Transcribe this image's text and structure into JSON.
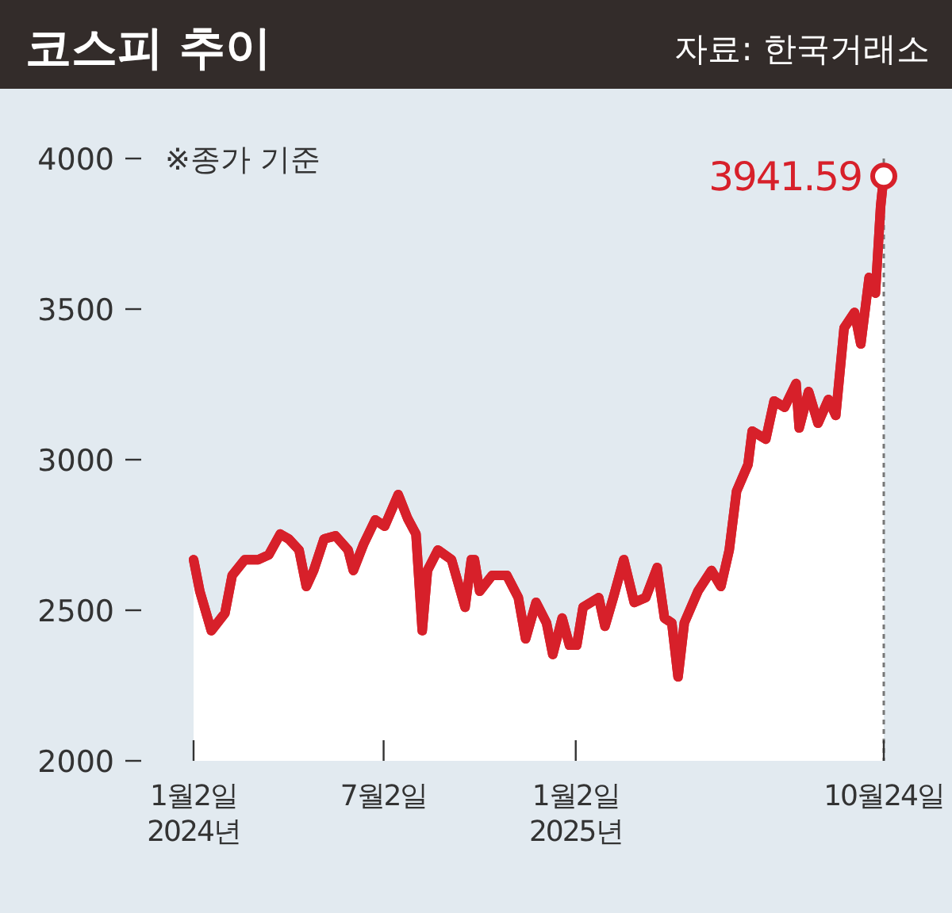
{
  "chart_data": {
    "type": "area",
    "title": "코스피 추이",
    "annotations": [
      "※종가 기준",
      "자료: 한국거래소",
      {
        "text": "3941.59",
        "x": "2025-10-24",
        "y": 3941.59
      }
    ],
    "x": [
      "2024-01-02",
      "2024-01-08",
      "2024-01-19",
      "2024-02-01",
      "2024-02-08",
      "2024-02-20",
      "2024-03-04",
      "2024-03-14",
      "2024-03-25",
      "2024-04-02",
      "2024-04-12",
      "2024-04-19",
      "2024-04-26",
      "2024-05-06",
      "2024-05-17",
      "2024-05-29",
      "2024-06-03",
      "2024-06-13",
      "2024-06-24",
      "2024-07-03",
      "2024-07-16",
      "2024-07-25",
      "2024-08-02",
      "2024-08-08",
      "2024-08-13",
      "2024-08-23",
      "2024-09-05",
      "2024-09-18",
      "2024-09-24",
      "2024-09-27",
      "2024-10-02",
      "2024-10-14",
      "2024-10-28",
      "2024-11-08",
      "2024-11-15",
      "2024-11-25",
      "2024-12-05",
      "2024-12-11",
      "2024-12-20",
      "2024-12-27",
      "2025-01-03",
      "2025-01-09",
      "2025-01-24",
      "2025-01-30",
      "2025-02-07",
      "2025-02-17",
      "2025-02-27",
      "2025-03-10",
      "2025-03-21",
      "2025-03-28",
      "2025-04-04",
      "2025-04-10",
      "2025-04-16",
      "2025-04-29",
      "2025-05-12",
      "2025-05-21",
      "2025-05-29",
      "2025-06-05",
      "2025-06-16",
      "2025-06-20",
      "2025-07-03",
      "2025-07-11",
      "2025-07-21",
      "2025-08-01",
      "2025-08-04",
      "2025-08-13",
      "2025-08-22",
      "2025-09-01",
      "2025-09-08",
      "2025-09-16",
      "2025-09-26",
      "2025-10-02",
      "2025-10-10",
      "2025-10-16",
      "2025-10-21",
      "2025-10-24"
    ],
    "series": [
      {
        "color": "#d7202a",
        "values": [
          2668,
          2563,
          2432,
          2490,
          2616,
          2668,
          2668,
          2684,
          2753,
          2737,
          2700,
          2579,
          2632,
          2737,
          2747,
          2700,
          2632,
          2721,
          2800,
          2779,
          2884,
          2805,
          2753,
          2432,
          2632,
          2700,
          2668,
          2510,
          2668,
          2668,
          2563,
          2616,
          2616,
          2542,
          2405,
          2526,
          2458,
          2353,
          2474,
          2384,
          2384,
          2510,
          2542,
          2447,
          2542,
          2668,
          2526,
          2542,
          2642,
          2474,
          2458,
          2279,
          2458,
          2563,
          2632,
          2579,
          2700,
          2895,
          2984,
          3095,
          3068,
          3195,
          3174,
          3253,
          3105,
          3226,
          3121,
          3200,
          3147,
          3437,
          3489,
          3384,
          3605,
          3553,
          3842,
          3941.59
        ]
      }
    ],
    "xlim": [
      "2024-01-02",
      "2025-10-24"
    ],
    "xticks": [
      {
        "value": "2024-01-02",
        "label": "1월2일\n2024년"
      },
      {
        "value": "2024-07-02",
        "label": "7월2일"
      },
      {
        "value": "2025-01-02",
        "label": "1월2일\n2025년"
      },
      {
        "value": "2025-10-24",
        "label": "10월24일"
      }
    ],
    "ylim": [
      2000,
      4000
    ],
    "yticks": [
      2000,
      2500,
      3000,
      3500,
      4000
    ],
    "ref_lines": [
      {
        "axis": "x",
        "value": "2025-10-24",
        "color": "#777777",
        "line_style": "dashed"
      }
    ],
    "grid": false
  }
}
